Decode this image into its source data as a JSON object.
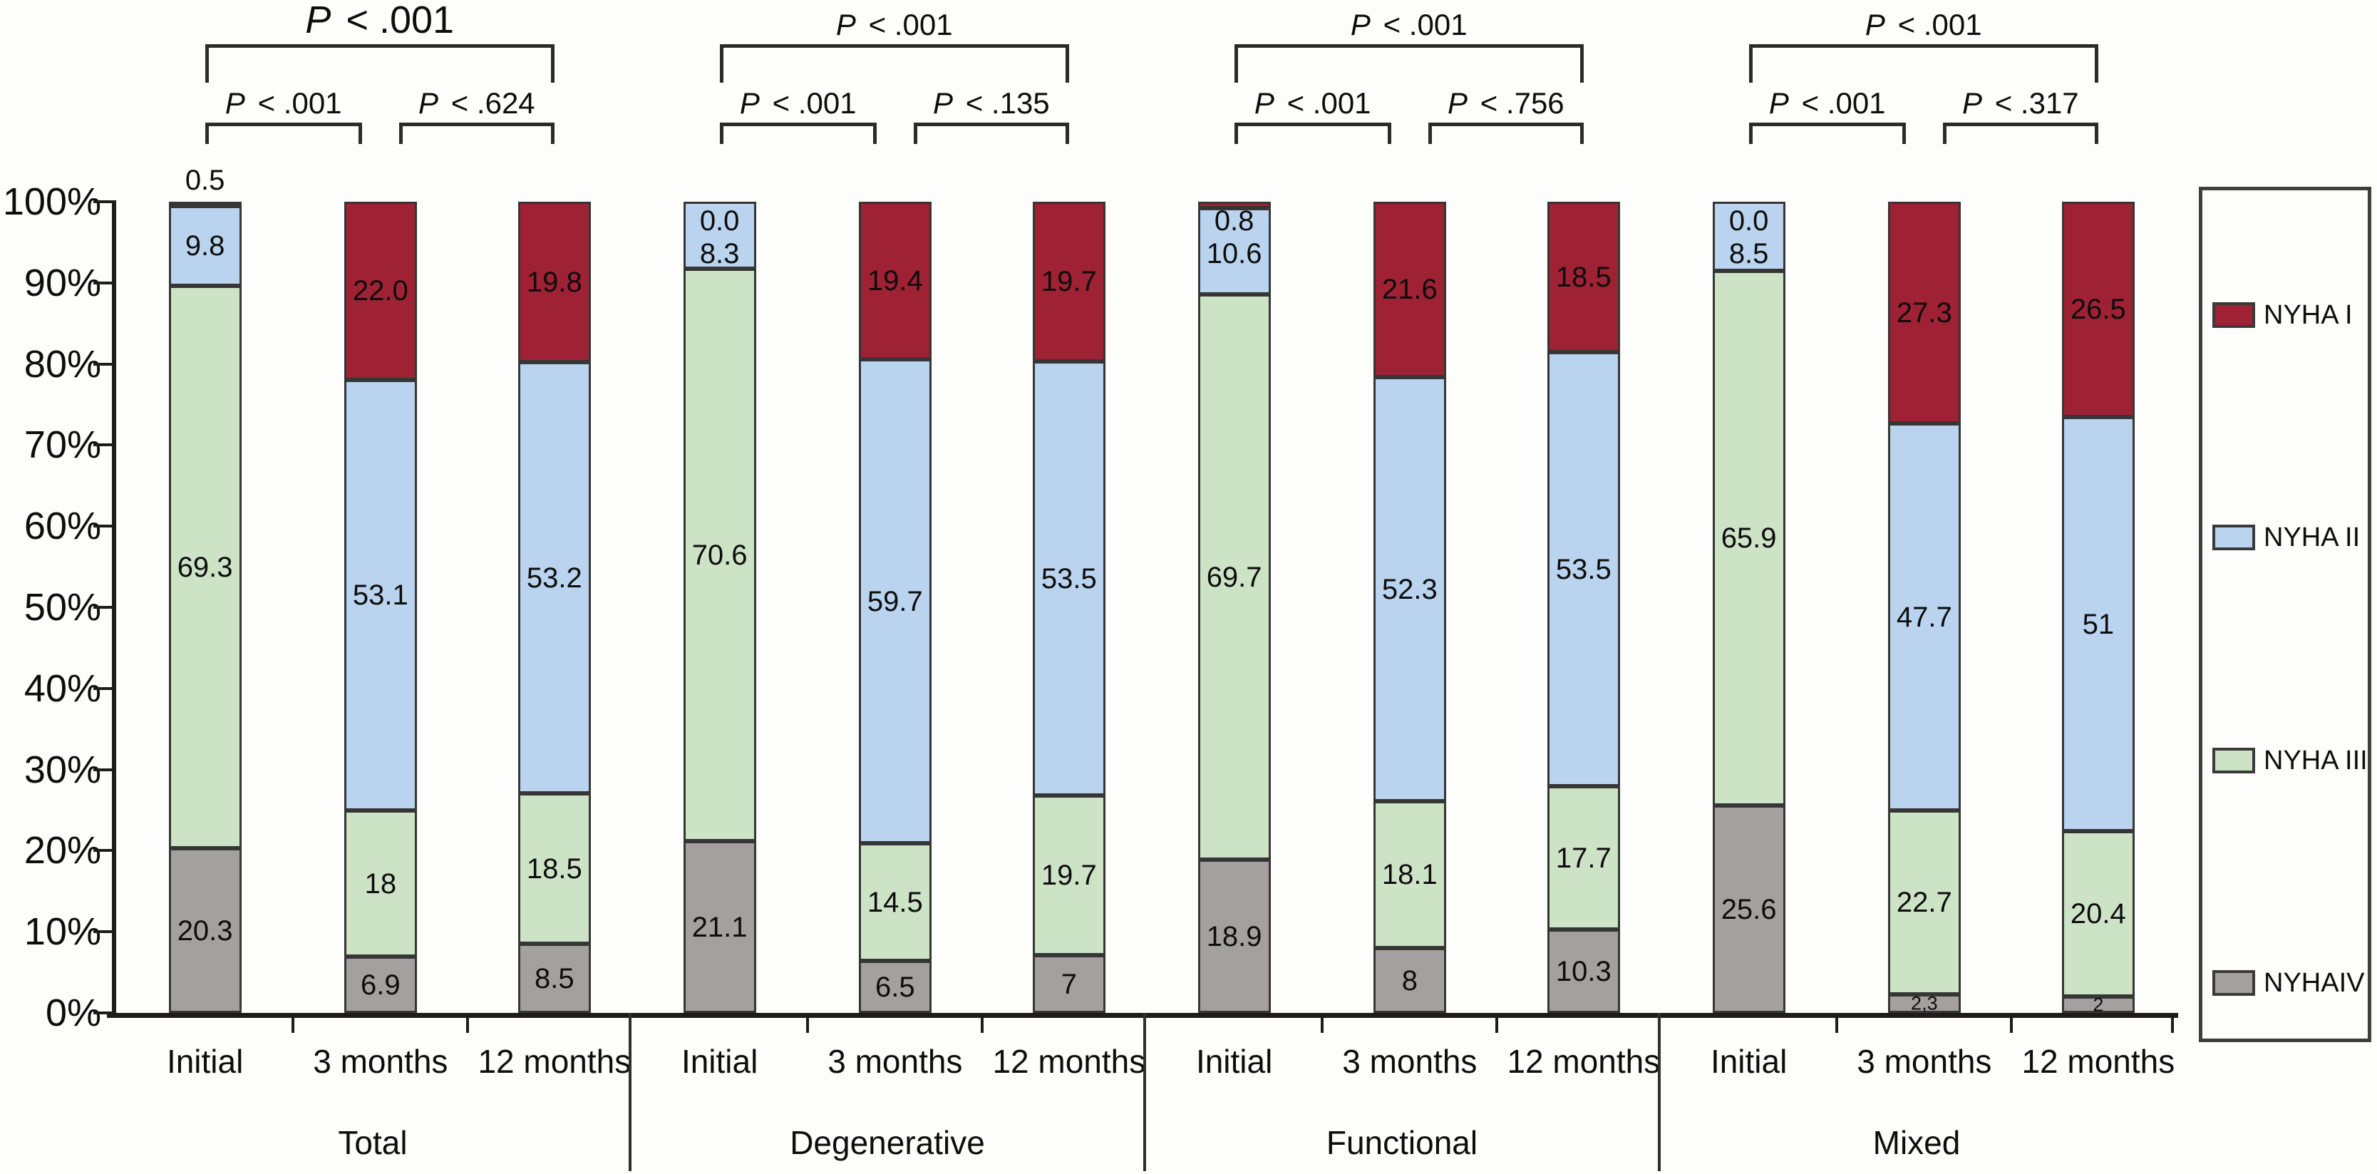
{
  "figure": {
    "y_axis": {
      "tick_labels": [
        "100%",
        "90%",
        "80%",
        "70%",
        "60%",
        "50%",
        "40%",
        "30%",
        "20%",
        "10%",
        "0%"
      ]
    },
    "legend": {
      "items": [
        {
          "label": "NYHA I",
          "color": "#9e2134"
        },
        {
          "label": "NYHA II",
          "color": "#bad4ef"
        },
        {
          "label": "NYHA III",
          "color": "#cde3c6"
        },
        {
          "label": "NYHAIV",
          "color": "#a5a0a0"
        }
      ]
    }
  },
  "chart_data": {
    "type": "bar",
    "subtype": "100%-stacked-column",
    "title": "",
    "xlabel": "",
    "ylabel": "",
    "ylim": [
      0,
      100
    ],
    "grid": false,
    "legend_position": "right",
    "y_tick_labels": [
      "0%",
      "10%",
      "20%",
      "30%",
      "40%",
      "50%",
      "60%",
      "70%",
      "80%",
      "90%",
      "100%"
    ],
    "series_top_to_bottom": [
      "NYHA I",
      "NYHA II",
      "NYHA III",
      "NYHA IV"
    ],
    "colors": {
      "NYHA I": "#9e2134",
      "NYHA II": "#bad4ef",
      "NYHA III": "#cde3c6",
      "NYHA IV": "#a5a0a0"
    },
    "time_points": [
      "Initial",
      "3 months",
      "12 months"
    ],
    "groups": [
      {
        "label": "Total",
        "p_values": {
          "overall": "P < .001",
          "left": "P < .001",
          "right": "P < .624"
        },
        "bars": [
          {
            "label": "Initial",
            "above_label": "0.5",
            "top_labels": [],
            "segments": [
              {
                "series": "NYHA I",
                "value": 0.5,
                "label": null
              },
              {
                "series": "NYHA II",
                "value": 9.8,
                "label": "9.8"
              },
              {
                "series": "NYHA III",
                "value": 69.3,
                "label": "69.3"
              },
              {
                "series": "NYHA IV",
                "value": 20.3,
                "label": "20.3"
              }
            ]
          },
          {
            "label": "3 months",
            "above_label": null,
            "top_labels": [],
            "segments": [
              {
                "series": "NYHA I",
                "value": 22.0,
                "label": "22.0"
              },
              {
                "series": "NYHA II",
                "value": 53.1,
                "label": "53.1"
              },
              {
                "series": "NYHA III",
                "value": 18.0,
                "label": "18"
              },
              {
                "series": "NYHA IV",
                "value": 6.9,
                "label": "6.9"
              }
            ]
          },
          {
            "label": "12 months",
            "above_label": null,
            "top_labels": [],
            "segments": [
              {
                "series": "NYHA I",
                "value": 19.8,
                "label": "19.8"
              },
              {
                "series": "NYHA II",
                "value": 53.2,
                "label": "53.2"
              },
              {
                "series": "NYHA III",
                "value": 18.5,
                "label": "18.5"
              },
              {
                "series": "NYHA IV",
                "value": 8.5,
                "label": "8.5"
              }
            ]
          }
        ]
      },
      {
        "label": "Degenerative",
        "p_values": {
          "overall": "P < .001",
          "left": "P < .001",
          "right": "P < .135"
        },
        "bars": [
          {
            "label": "Initial",
            "above_label": null,
            "top_labels": [
              "0.0",
              "8.3"
            ],
            "segments": [
              {
                "series": "NYHA I",
                "value": 0.0,
                "label": null
              },
              {
                "series": "NYHA II",
                "value": 8.3,
                "label": null
              },
              {
                "series": "NYHA III",
                "value": 70.6,
                "label": "70.6"
              },
              {
                "series": "NYHA IV",
                "value": 21.1,
                "label": "21.1"
              }
            ]
          },
          {
            "label": "3 months",
            "above_label": null,
            "top_labels": [],
            "segments": [
              {
                "series": "NYHA I",
                "value": 19.4,
                "label": "19.4"
              },
              {
                "series": "NYHA II",
                "value": 59.7,
                "label": "59.7"
              },
              {
                "series": "NYHA III",
                "value": 14.5,
                "label": "14.5"
              },
              {
                "series": "NYHA IV",
                "value": 6.5,
                "label": "6.5"
              }
            ]
          },
          {
            "label": "12 months",
            "above_label": null,
            "top_labels": [],
            "segments": [
              {
                "series": "NYHA I",
                "value": 19.7,
                "label": "19.7"
              },
              {
                "series": "NYHA II",
                "value": 53.5,
                "label": "53.5"
              },
              {
                "series": "NYHA III",
                "value": 19.7,
                "label": "19.7"
              },
              {
                "series": "NYHA IV",
                "value": 7.0,
                "label": "7"
              }
            ]
          }
        ]
      },
      {
        "label": "Functional",
        "p_values": {
          "overall": "P < .001",
          "left": "P < .001",
          "right": "P < .756"
        },
        "bars": [
          {
            "label": "Initial",
            "above_label": null,
            "top_labels": [
              "0.8",
              "10.6"
            ],
            "segments": [
              {
                "series": "NYHA I",
                "value": 0.8,
                "label": null
              },
              {
                "series": "NYHA II",
                "value": 10.6,
                "label": null
              },
              {
                "series": "NYHA III",
                "value": 69.7,
                "label": "69.7"
              },
              {
                "series": "NYHA IV",
                "value": 18.9,
                "label": "18.9"
              }
            ]
          },
          {
            "label": "3 months",
            "above_label": null,
            "top_labels": [],
            "segments": [
              {
                "series": "NYHA I",
                "value": 21.6,
                "label": "21.6"
              },
              {
                "series": "NYHA II",
                "value": 52.3,
                "label": "52.3"
              },
              {
                "series": "NYHA III",
                "value": 18.1,
                "label": "18.1"
              },
              {
                "series": "NYHA IV",
                "value": 8.0,
                "label": "8"
              }
            ]
          },
          {
            "label": "12 months",
            "above_label": null,
            "top_labels": [],
            "segments": [
              {
                "series": "NYHA I",
                "value": 18.5,
                "label": "18.5"
              },
              {
                "series": "NYHA II",
                "value": 53.5,
                "label": "53.5"
              },
              {
                "series": "NYHA III",
                "value": 17.7,
                "label": "17.7"
              },
              {
                "series": "NYHA IV",
                "value": 10.3,
                "label": "10.3"
              }
            ]
          }
        ]
      },
      {
        "label": "Mixed",
        "p_values": {
          "overall": "P < .001",
          "left": "P < .001",
          "right": "P < .317"
        },
        "bars": [
          {
            "label": "Initial",
            "above_label": null,
            "top_labels": [
              "0.0",
              "8.5"
            ],
            "segments": [
              {
                "series": "NYHA I",
                "value": 0.0,
                "label": null
              },
              {
                "series": "NYHA II",
                "value": 8.5,
                "label": null
              },
              {
                "series": "NYHA III",
                "value": 65.9,
                "label": "65.9"
              },
              {
                "series": "NYHA IV",
                "value": 25.6,
                "label": "25.6"
              }
            ]
          },
          {
            "label": "3 months",
            "above_label": null,
            "top_labels": [],
            "segments": [
              {
                "series": "NYHA I",
                "value": 27.3,
                "label": "27.3"
              },
              {
                "series": "NYHA II",
                "value": 47.7,
                "label": "47.7"
              },
              {
                "series": "NYHA III",
                "value": 22.7,
                "label": "22.7"
              },
              {
                "series": "NYHA IV",
                "value": 2.3,
                "label": "2,3"
              }
            ]
          },
          {
            "label": "12 months",
            "above_label": null,
            "top_labels": [],
            "segments": [
              {
                "series": "NYHA I",
                "value": 26.5,
                "label": "26.5"
              },
              {
                "series": "NYHA II",
                "value": 51.0,
                "label": "51"
              },
              {
                "series": "NYHA III",
                "value": 20.4,
                "label": "20.4"
              },
              {
                "series": "NYHA IV",
                "value": 2.0,
                "label": "2"
              }
            ]
          }
        ]
      }
    ]
  }
}
